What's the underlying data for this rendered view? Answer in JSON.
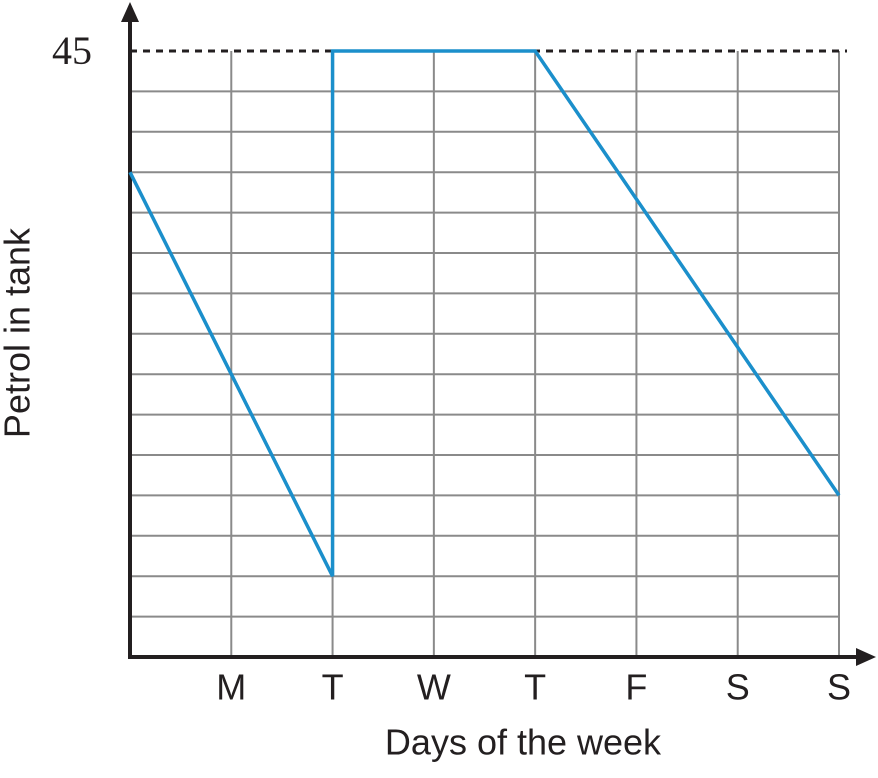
{
  "chart_data": {
    "type": "line",
    "x_label": "Days of the week",
    "y_label": "Petrol in tank",
    "x": [
      0,
      1,
      2,
      2,
      3,
      4,
      5,
      6,
      7
    ],
    "series": [
      {
        "color": "#1b8fcb",
        "values": [
          36,
          21,
          6,
          45,
          45,
          45,
          34,
          23,
          12
        ]
      }
    ],
    "xlim": [
      0,
      7
    ],
    "xticks": [
      {
        "value": 1,
        "label": "M"
      },
      {
        "value": 2,
        "label": "T"
      },
      {
        "value": 3,
        "label": "W"
      },
      {
        "value": 4,
        "label": "T"
      },
      {
        "value": 5,
        "label": "F"
      },
      {
        "value": 6,
        "label": "S"
      },
      {
        "value": 7,
        "label": "S"
      }
    ],
    "ylim": [
      0,
      45
    ],
    "yticks": [
      45
    ],
    "ygrid": [
      3,
      6,
      9,
      12,
      15,
      18,
      21,
      24,
      27,
      30,
      33,
      36,
      39,
      42
    ],
    "grid": true
  }
}
